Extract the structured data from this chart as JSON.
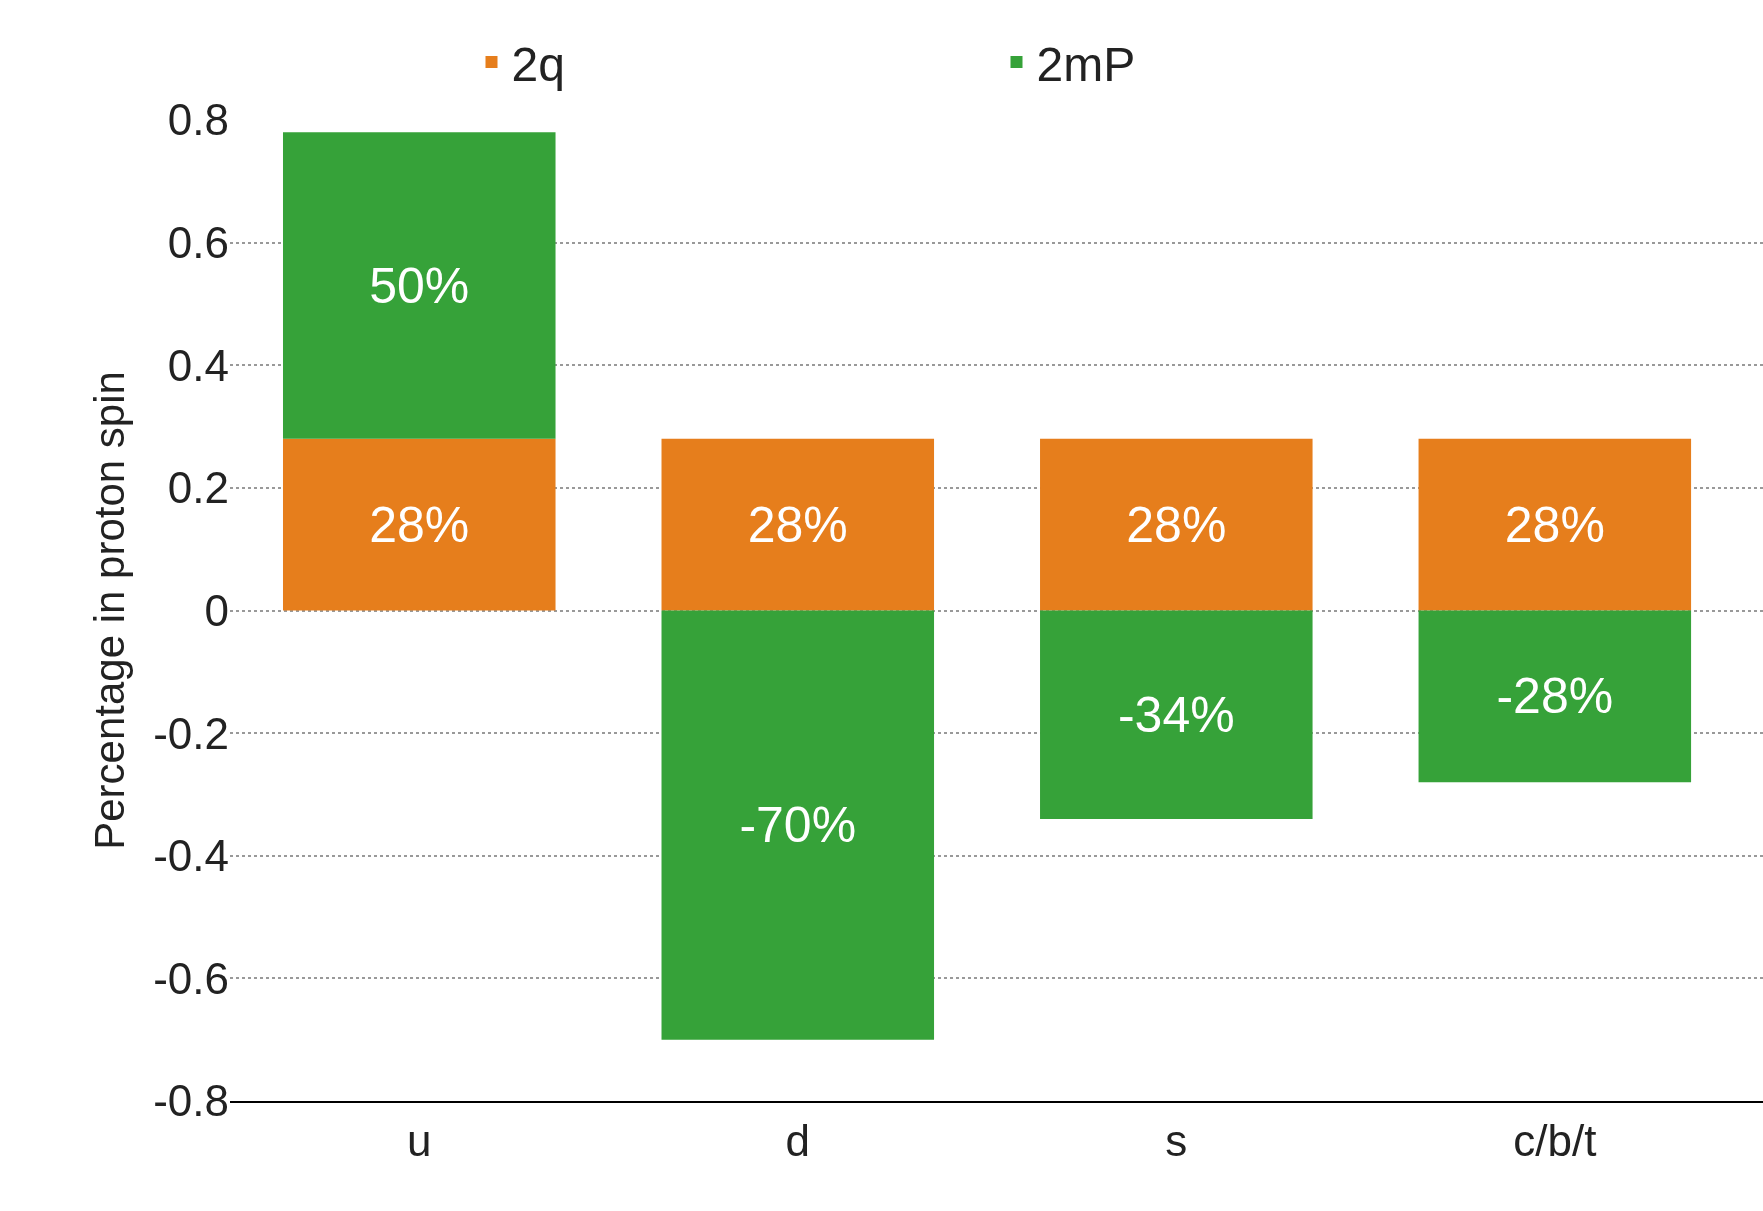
{
  "chart_data": {
    "type": "bar",
    "stacked": true,
    "ylabel": "Percentage in proton spin",
    "categories": [
      "u",
      "d",
      "s",
      "c/b/t"
    ],
    "series": [
      {
        "name": "2q",
        "color": "#e67e1c",
        "values": [
          0.28,
          0.28,
          0.28,
          0.28
        ],
        "value_labels": [
          "28%",
          "28%",
          "28%",
          "28%"
        ]
      },
      {
        "name": "2mP",
        "color": "#36a239",
        "values": [
          0.5,
          -0.7,
          -0.34,
          -0.28
        ],
        "value_labels": [
          "50%",
          "-70%",
          "-34%",
          "-28%"
        ]
      }
    ],
    "ylim": [
      -0.8,
      0.8
    ],
    "yticks": [
      -0.8,
      -0.6,
      -0.4,
      -0.2,
      0,
      0.2,
      0.4,
      0.6,
      0.8
    ],
    "grid": "y",
    "legend": "top"
  }
}
